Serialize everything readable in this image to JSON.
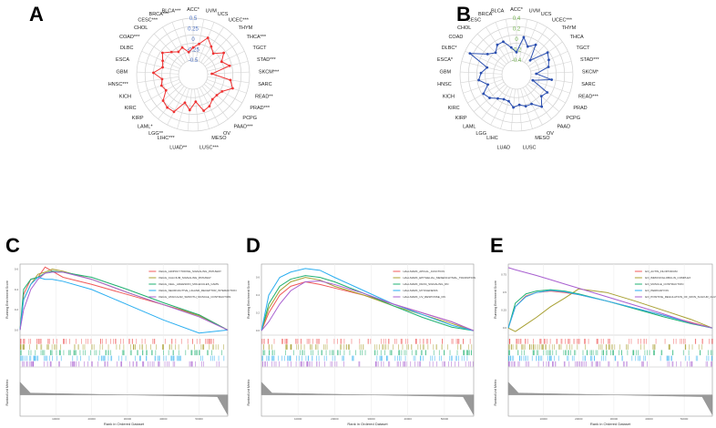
{
  "panels": {
    "A": "A",
    "B": "B",
    "C": "C",
    "D": "D",
    "E": "E"
  },
  "chart_data": [
    {
      "id": "A",
      "type": "radar",
      "color": "#ee3333",
      "rlim": [
        -0.5,
        0.5
      ],
      "ticks": [
        "0.5",
        "0.25",
        "0",
        "-0.25",
        "-0.5"
      ],
      "tick_color": "#4a6fc0",
      "categories": [
        "ACC*",
        "UVM",
        "UCS",
        "UCEC***",
        "THYM",
        "THCA***",
        "TGCT",
        "STAD***",
        "SKCM***",
        "SARC",
        "READ**",
        "PRAD***",
        "PCPG",
        "PAAD***",
        "OV",
        "MESO",
        "LUSC***",
        "LUAD**",
        "LIHC***",
        "LGG**",
        "LAML*",
        "KIRP",
        "KIRC",
        "KICH",
        "HNSC***",
        "GBM",
        "ESCA",
        "DLBC",
        "COAD***",
        "CHOL",
        "CESC***",
        "BRCA***",
        "BLCA***"
      ],
      "values": [
        -0.2,
        -0.1,
        0.1,
        -0.05,
        -0.15,
        0.05,
        -0.1,
        0.05,
        -0.4,
        0.05,
        0.15,
        -0.05,
        -0.1,
        -0.1,
        0.0,
        0.05,
        -0.2,
        0.0,
        -0.15,
        0.15,
        0.15,
        0.1,
        -0.1,
        -0.05,
        -0.1,
        0.1,
        -0.1,
        -0.05,
        0.05,
        -0.1,
        -0.2,
        -0.15,
        -0.3
      ]
    },
    {
      "id": "B",
      "type": "radar",
      "color": "#2b4fb0",
      "rlim": [
        -0.4,
        0.4
      ],
      "ticks": [
        "0.4",
        "0.2",
        "0",
        "-0.2",
        "-0.4"
      ],
      "tick_color": "#6fb04a",
      "categories": [
        "ACC*",
        "UVM",
        "UCS",
        "UCEC***",
        "THYM",
        "THCA",
        "TGCT",
        "STAD***",
        "SKCM*",
        "SARC",
        "READ***",
        "PRAD",
        "PCPG",
        "PAAD",
        "OV",
        "MESO",
        "LUSC",
        "LUAD",
        "LIHC",
        "LGG",
        "LAML",
        "KIRP",
        "KIRC",
        "KICH",
        "HNSC",
        "GBM",
        "ESCA*",
        "DLBC*",
        "COAD",
        "CHOL",
        "CESC",
        "BRCA",
        "BLCA"
      ],
      "values": [
        -0.25,
        0.05,
        -0.1,
        0.0,
        -0.3,
        0.05,
        0.0,
        -0.05,
        -0.3,
        0.0,
        -0.35,
        0.0,
        -0.05,
        0.1,
        -0.05,
        -0.05,
        -0.1,
        -0.05,
        -0.15,
        -0.15,
        -0.1,
        0.0,
        0.05,
        -0.1,
        0.05,
        0.0,
        -0.1,
        0.3,
        0.0,
        -0.1,
        0.0,
        0.0,
        -0.15
      ]
    },
    {
      "id": "C",
      "type": "line",
      "ylabel": "Running Enrichment Score",
      "ylabel2": "Ranked List Metric",
      "xlabel": "Rank in Ordered Dataset",
      "ylim": [
        -0.05,
        0.65
      ],
      "yticks": [
        "0.0",
        "0.2",
        "0.4",
        "0.6"
      ],
      "xticks": [
        "10000",
        "20000",
        "30000",
        "40000",
        "50000"
      ],
      "x": [
        0,
        1000,
        3000,
        5000,
        7000,
        9000,
        12000,
        20000,
        30000,
        40000,
        50000,
        58000
      ],
      "series": [
        {
          "name": "KEGG_ADIPOCYTOKINE_SIGNALING_PATHWAY",
          "color": "#f05a5a",
          "values": [
            0,
            0.35,
            0.5,
            0.52,
            0.62,
            0.58,
            0.52,
            0.45,
            0.35,
            0.25,
            0.15,
            0
          ]
        },
        {
          "name": "KEGG_CALCIUM_SIGNALING_PATHWAY",
          "color": "#a8a032",
          "values": [
            0,
            0.3,
            0.45,
            0.55,
            0.57,
            0.6,
            0.58,
            0.5,
            0.37,
            0.25,
            0.14,
            0
          ]
        },
        {
          "name": "KEGG_CELL_ADHESION_MOLECULES_CAMS",
          "color": "#1fb070",
          "values": [
            0,
            0.4,
            0.5,
            0.52,
            0.56,
            0.58,
            0.57,
            0.52,
            0.4,
            0.27,
            0.15,
            0
          ]
        },
        {
          "name": "KEGG_NEUROACTIVE_LIGAND_RECEPTOR_INTERACTION",
          "color": "#2aaef0",
          "values": [
            0,
            0.3,
            0.45,
            0.52,
            0.5,
            0.5,
            0.48,
            0.4,
            0.25,
            0.1,
            -0.03,
            0
          ]
        },
        {
          "name": "KEGG_VASCULAR_SMOOTH_MUSCLE_CONTRACTION",
          "color": "#a860d0",
          "values": [
            0,
            0.2,
            0.4,
            0.5,
            0.56,
            0.57,
            0.57,
            0.5,
            0.37,
            0.25,
            0.13,
            0
          ]
        }
      ]
    },
    {
      "id": "D",
      "type": "line",
      "ylabel": "Running Enrichment Score",
      "ylabel2": "Ranked List Metric",
      "xlabel": "Rank in Ordered Dataset",
      "ylim": [
        -0.05,
        0.75
      ],
      "yticks": [
        "0.0",
        "0.2",
        "0.4",
        "0.6"
      ],
      "xticks": [
        "10000",
        "20000",
        "30000",
        "40000",
        "50000"
      ],
      "x": [
        0,
        2000,
        5000,
        8000,
        12000,
        16000,
        20000,
        28000,
        36000,
        44000,
        52000,
        58000
      ],
      "series": [
        {
          "name": "HALLMARK_APICAL_JUNCTION",
          "color": "#f05a5a",
          "values": [
            0,
            0.2,
            0.4,
            0.5,
            0.55,
            0.52,
            0.48,
            0.4,
            0.3,
            0.2,
            0.1,
            0
          ]
        },
        {
          "name": "HALLMARK_EPITHELIAL_MESENCHYMAL_TRANSITION",
          "color": "#a8a032",
          "values": [
            0,
            0.25,
            0.45,
            0.55,
            0.6,
            0.57,
            0.5,
            0.4,
            0.28,
            0.18,
            0.08,
            0
          ]
        },
        {
          "name": "HALLMARK_KRAS_SIGNALING_DN",
          "color": "#1fb070",
          "values": [
            0,
            0.3,
            0.5,
            0.58,
            0.62,
            0.6,
            0.55,
            0.42,
            0.28,
            0.15,
            0.04,
            0
          ]
        },
        {
          "name": "HALLMARK_MYOGENESIS",
          "color": "#2aaef0",
          "values": [
            0,
            0.4,
            0.6,
            0.66,
            0.7,
            0.68,
            0.6,
            0.45,
            0.3,
            0.18,
            0.06,
            0
          ]
        },
        {
          "name": "HALLMARK_UV_RESPONSE_DN",
          "color": "#a860d0",
          "values": [
            0,
            0.1,
            0.3,
            0.45,
            0.55,
            0.56,
            0.52,
            0.42,
            0.3,
            0.2,
            0.1,
            0
          ]
        }
      ]
    },
    {
      "id": "E",
      "type": "line",
      "ylabel": "Running Enrichment Score",
      "ylabel2": "Ranked List Metric",
      "xlabel": "Rank in Ordered Dataset",
      "ylim": [
        -0.1,
        0.9
      ],
      "yticks": [
        "0.0",
        "0.25",
        "0.5",
        "0.75"
      ],
      "xticks": [
        "10000",
        "20000",
        "30000",
        "40000",
        "50000"
      ],
      "x": [
        0,
        2000,
        5000,
        8000,
        12000,
        16000,
        20000,
        28000,
        36000,
        44000,
        52000,
        58000
      ],
      "series": [
        {
          "name": "GO_ACTIN_FILOPODIUM",
          "color": "#f05a5a",
          "values": [
            0,
            0.3,
            0.45,
            0.5,
            0.52,
            0.5,
            0.47,
            0.38,
            0.28,
            0.18,
            0.08,
            0
          ]
        },
        {
          "name": "GO_IMMUNOGLOBULIN_COMPLEX",
          "color": "#a8a032",
          "values": [
            0,
            -0.05,
            0.05,
            0.15,
            0.3,
            0.42,
            0.55,
            0.5,
            0.38,
            0.25,
            0.12,
            0
          ]
        },
        {
          "name": "GO_MUSCLE_CONTRACTION",
          "color": "#1fb070",
          "values": [
            0,
            0.35,
            0.48,
            0.52,
            0.54,
            0.52,
            0.48,
            0.38,
            0.27,
            0.16,
            0.06,
            0
          ]
        },
        {
          "name": "GO_PERIKARYON",
          "color": "#2aaef0",
          "values": [
            0,
            0.3,
            0.44,
            0.5,
            0.53,
            0.51,
            0.47,
            0.38,
            0.28,
            0.18,
            0.07,
            0
          ]
        },
        {
          "name": "GO_POSITIVE_REGULATION_OF_IRON_SULFUR_CLUSTER_TRANSPORT",
          "color": "#a860d0",
          "values": [
            0.85,
            0.82,
            0.78,
            0.74,
            0.68,
            0.62,
            0.56,
            0.44,
            0.32,
            0.2,
            0.07,
            0
          ]
        }
      ]
    }
  ]
}
